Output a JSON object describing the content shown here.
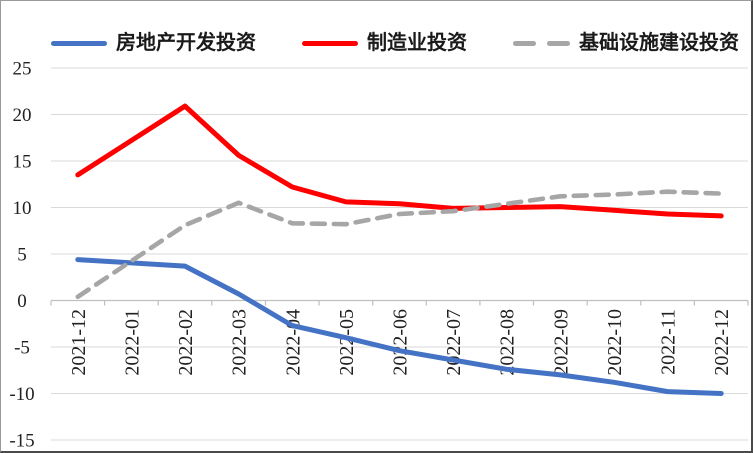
{
  "chart_data": {
    "type": "line",
    "title": "",
    "xlabel": "",
    "ylabel": "",
    "categories": [
      "2021-12",
      "2022-01",
      "2022-02",
      "2022-03",
      "2022-04",
      "2022-05",
      "2022-06",
      "2022-07",
      "2022-08",
      "2022-09",
      "2022-10",
      "2022-11",
      "2022-12"
    ],
    "series": [
      {
        "name": "房地产开发投资",
        "color": "#4472C4",
        "style": "solid",
        "values": [
          4.4,
          null,
          3.7,
          0.7,
          -2.7,
          -4.0,
          -5.4,
          -6.4,
          -7.4,
          -8.0,
          -8.8,
          -9.8,
          -10.0
        ]
      },
      {
        "name": "制造业投资",
        "color": "#FF0000",
        "style": "solid",
        "values": [
          13.5,
          null,
          20.9,
          15.6,
          12.2,
          10.6,
          10.4,
          9.9,
          10.0,
          10.1,
          9.7,
          9.3,
          9.1
        ]
      },
      {
        "name": "基础设施建设投资",
        "color": "#A6A6A6",
        "style": "dashed",
        "values": [
          0.4,
          null,
          8.1,
          10.5,
          8.3,
          8.2,
          9.3,
          9.6,
          10.4,
          11.2,
          11.4,
          11.7,
          11.5
        ]
      }
    ],
    "ylim": [
      -15,
      25
    ],
    "yticks": [
      25,
      20,
      15,
      10,
      5,
      0,
      -5,
      -10,
      -15
    ],
    "grid": true,
    "legend_position": "top",
    "x_tick_label_rotation": -90
  },
  "colors": {
    "gridline": "#D9D9D9",
    "axis": "#BFBFBF",
    "label": "#212121",
    "background": "#FFFFFF"
  }
}
